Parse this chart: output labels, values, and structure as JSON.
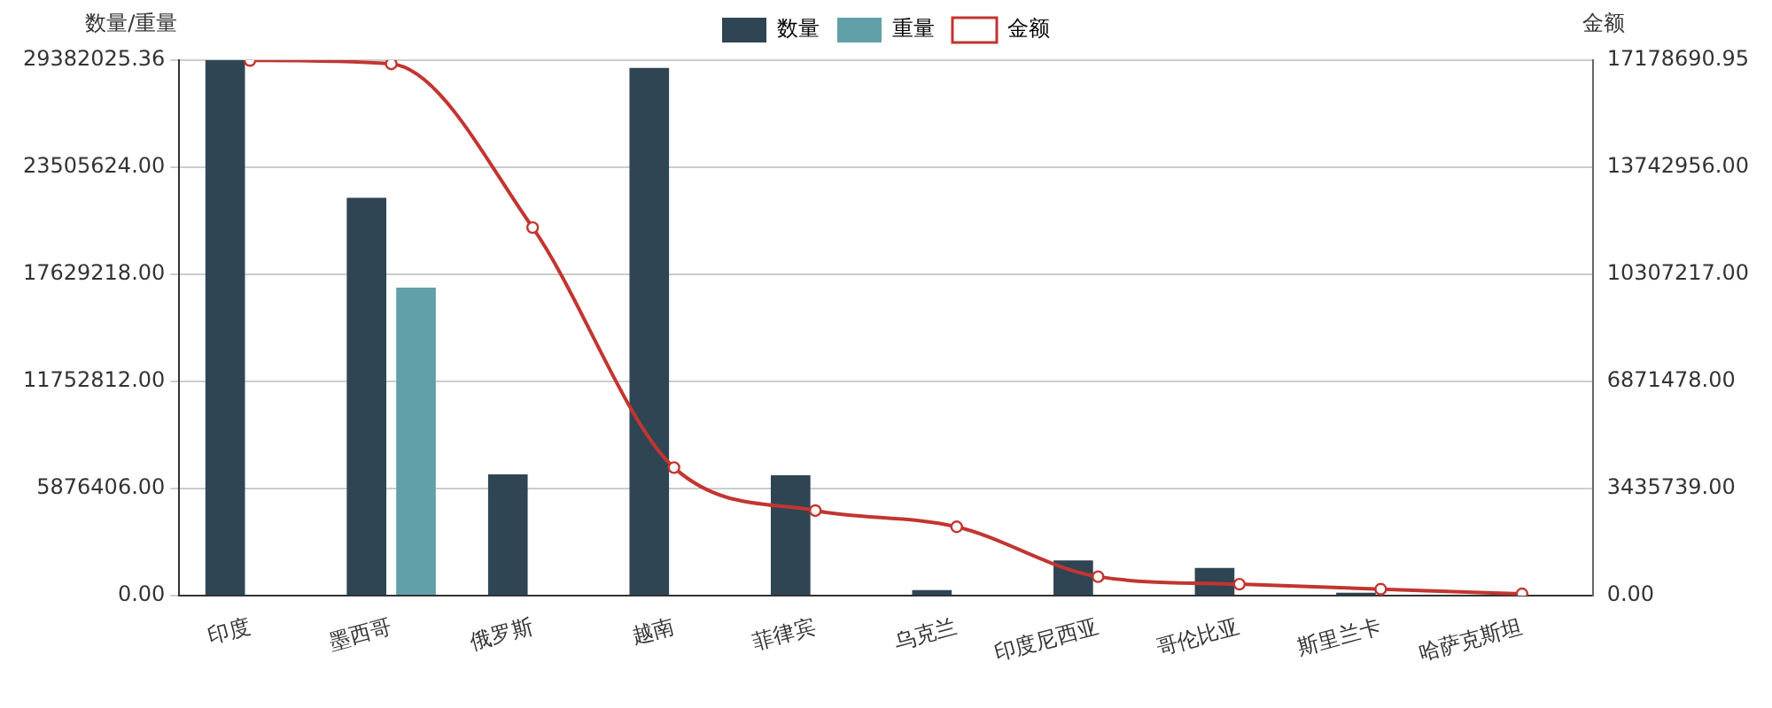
{
  "chart_data": {
    "type": "bar",
    "categories": [
      "印度",
      "墨西哥",
      "俄罗斯",
      "越南",
      "菲律宾",
      "乌克兰",
      "印度尼西亚",
      "哥伦比亚",
      "斯里兰卡",
      "哈萨克斯坦"
    ],
    "series": [
      {
        "name": "数量",
        "color": "#2f4554",
        "values": [
          29380000,
          21830000,
          6660000,
          28960000,
          6610000,
          310000,
          1940000,
          1520000,
          160000,
          50000
        ]
      },
      {
        "name": "重量",
        "color": "#61a0a8",
        "values": [
          0,
          16900000,
          0,
          0,
          0,
          0,
          0,
          0,
          0,
          0
        ]
      },
      {
        "name": "金额",
        "type": "line",
        "axis": "y2",
        "color": "#c23531",
        "marker": "circle",
        "values": [
          17170000,
          17060000,
          11810000,
          4110000,
          2730000,
          2210000,
          610000,
          370000,
          210000,
          60000
        ]
      }
    ],
    "ylabel": "数量/重量",
    "y2label": "金额",
    "ylim": [
      0,
      29382025.36
    ],
    "yticks": [
      {
        "value": 0,
        "label": "0.00"
      },
      {
        "value": 5876406,
        "label": "5876406.00"
      },
      {
        "value": 11752812,
        "label": "11752812.00"
      },
      {
        "value": 17629218,
        "label": "17629218.00"
      },
      {
        "value": 23505624,
        "label": "23505624.00"
      },
      29382025.36
    ],
    "y2lim": [
      0,
      17178690.95
    ],
    "y2ticks": [
      {
        "value": 0,
        "label": "0.00"
      },
      {
        "value": 3435739,
        "label": "3435739.00"
      },
      {
        "value": 6871478,
        "label": "6871478.00"
      },
      {
        "value": 10307217,
        "label": "10307217.00"
      },
      {
        "value": 13742956,
        "label": "13742956.00"
      },
      17178690.95
    ],
    "grid": "y",
    "legend": "top"
  }
}
